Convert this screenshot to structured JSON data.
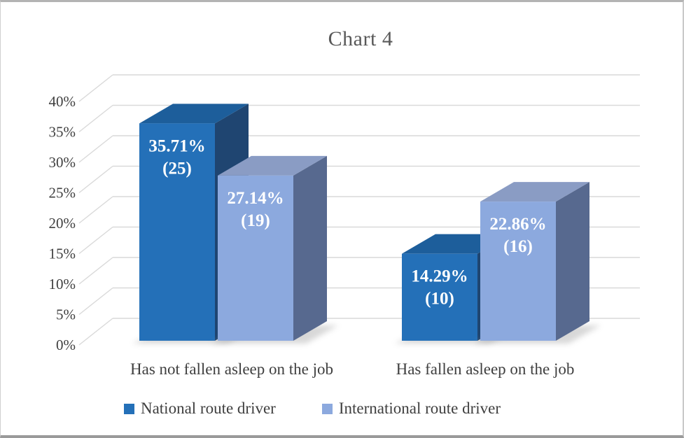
{
  "chart_data": {
    "type": "bar",
    "projection": "3d-column",
    "title": "Chart 4",
    "categories": [
      "Has not fallen asleep on the job",
      "Has fallen asleep on the job"
    ],
    "series": [
      {
        "name": "National route driver",
        "values": [
          35.71,
          14.29
        ],
        "counts": [
          25,
          10
        ],
        "label_lines": [
          [
            "35.71%",
            "(25)"
          ],
          [
            "14.29%",
            "(10)"
          ]
        ],
        "front_color": "#2470B8",
        "top_color": "#1D5E9B",
        "side_color": "#1F4571"
      },
      {
        "name": "International route driver",
        "values": [
          27.14,
          22.86
        ],
        "counts": [
          19,
          16
        ],
        "label_lines": [
          [
            "27.14%",
            "(19)"
          ],
          [
            "22.86%",
            "(16)"
          ]
        ],
        "front_color": "#8CA9DE",
        "top_color": "#8A9CC4",
        "side_color": "#57698F"
      }
    ],
    "ylabel": "",
    "xlabel": "",
    "ylim": [
      0,
      40
    ],
    "ytick_step": 5,
    "yticks": [
      {
        "pct": 0,
        "label": "0%"
      },
      {
        "pct": 5,
        "label": "5%"
      },
      {
        "pct": 10,
        "label": "10%"
      },
      {
        "pct": 15,
        "label": "15%"
      },
      {
        "pct": 20,
        "label": "20%"
      },
      {
        "pct": 25,
        "label": "25%"
      },
      {
        "pct": 30,
        "label": "30%"
      },
      {
        "pct": 35,
        "label": "35%"
      },
      {
        "pct": 40,
        "label": "40%"
      }
    ],
    "grid": true,
    "legend_position": "bottom",
    "style": {
      "gridline_color": "#D9D9D9",
      "title_color": "#595959",
      "text_color": "#3F3F3F",
      "data_label_color": "#FFFFFF",
      "shadow_color": "#9E9E9E",
      "background": "#FFFFFF"
    }
  }
}
